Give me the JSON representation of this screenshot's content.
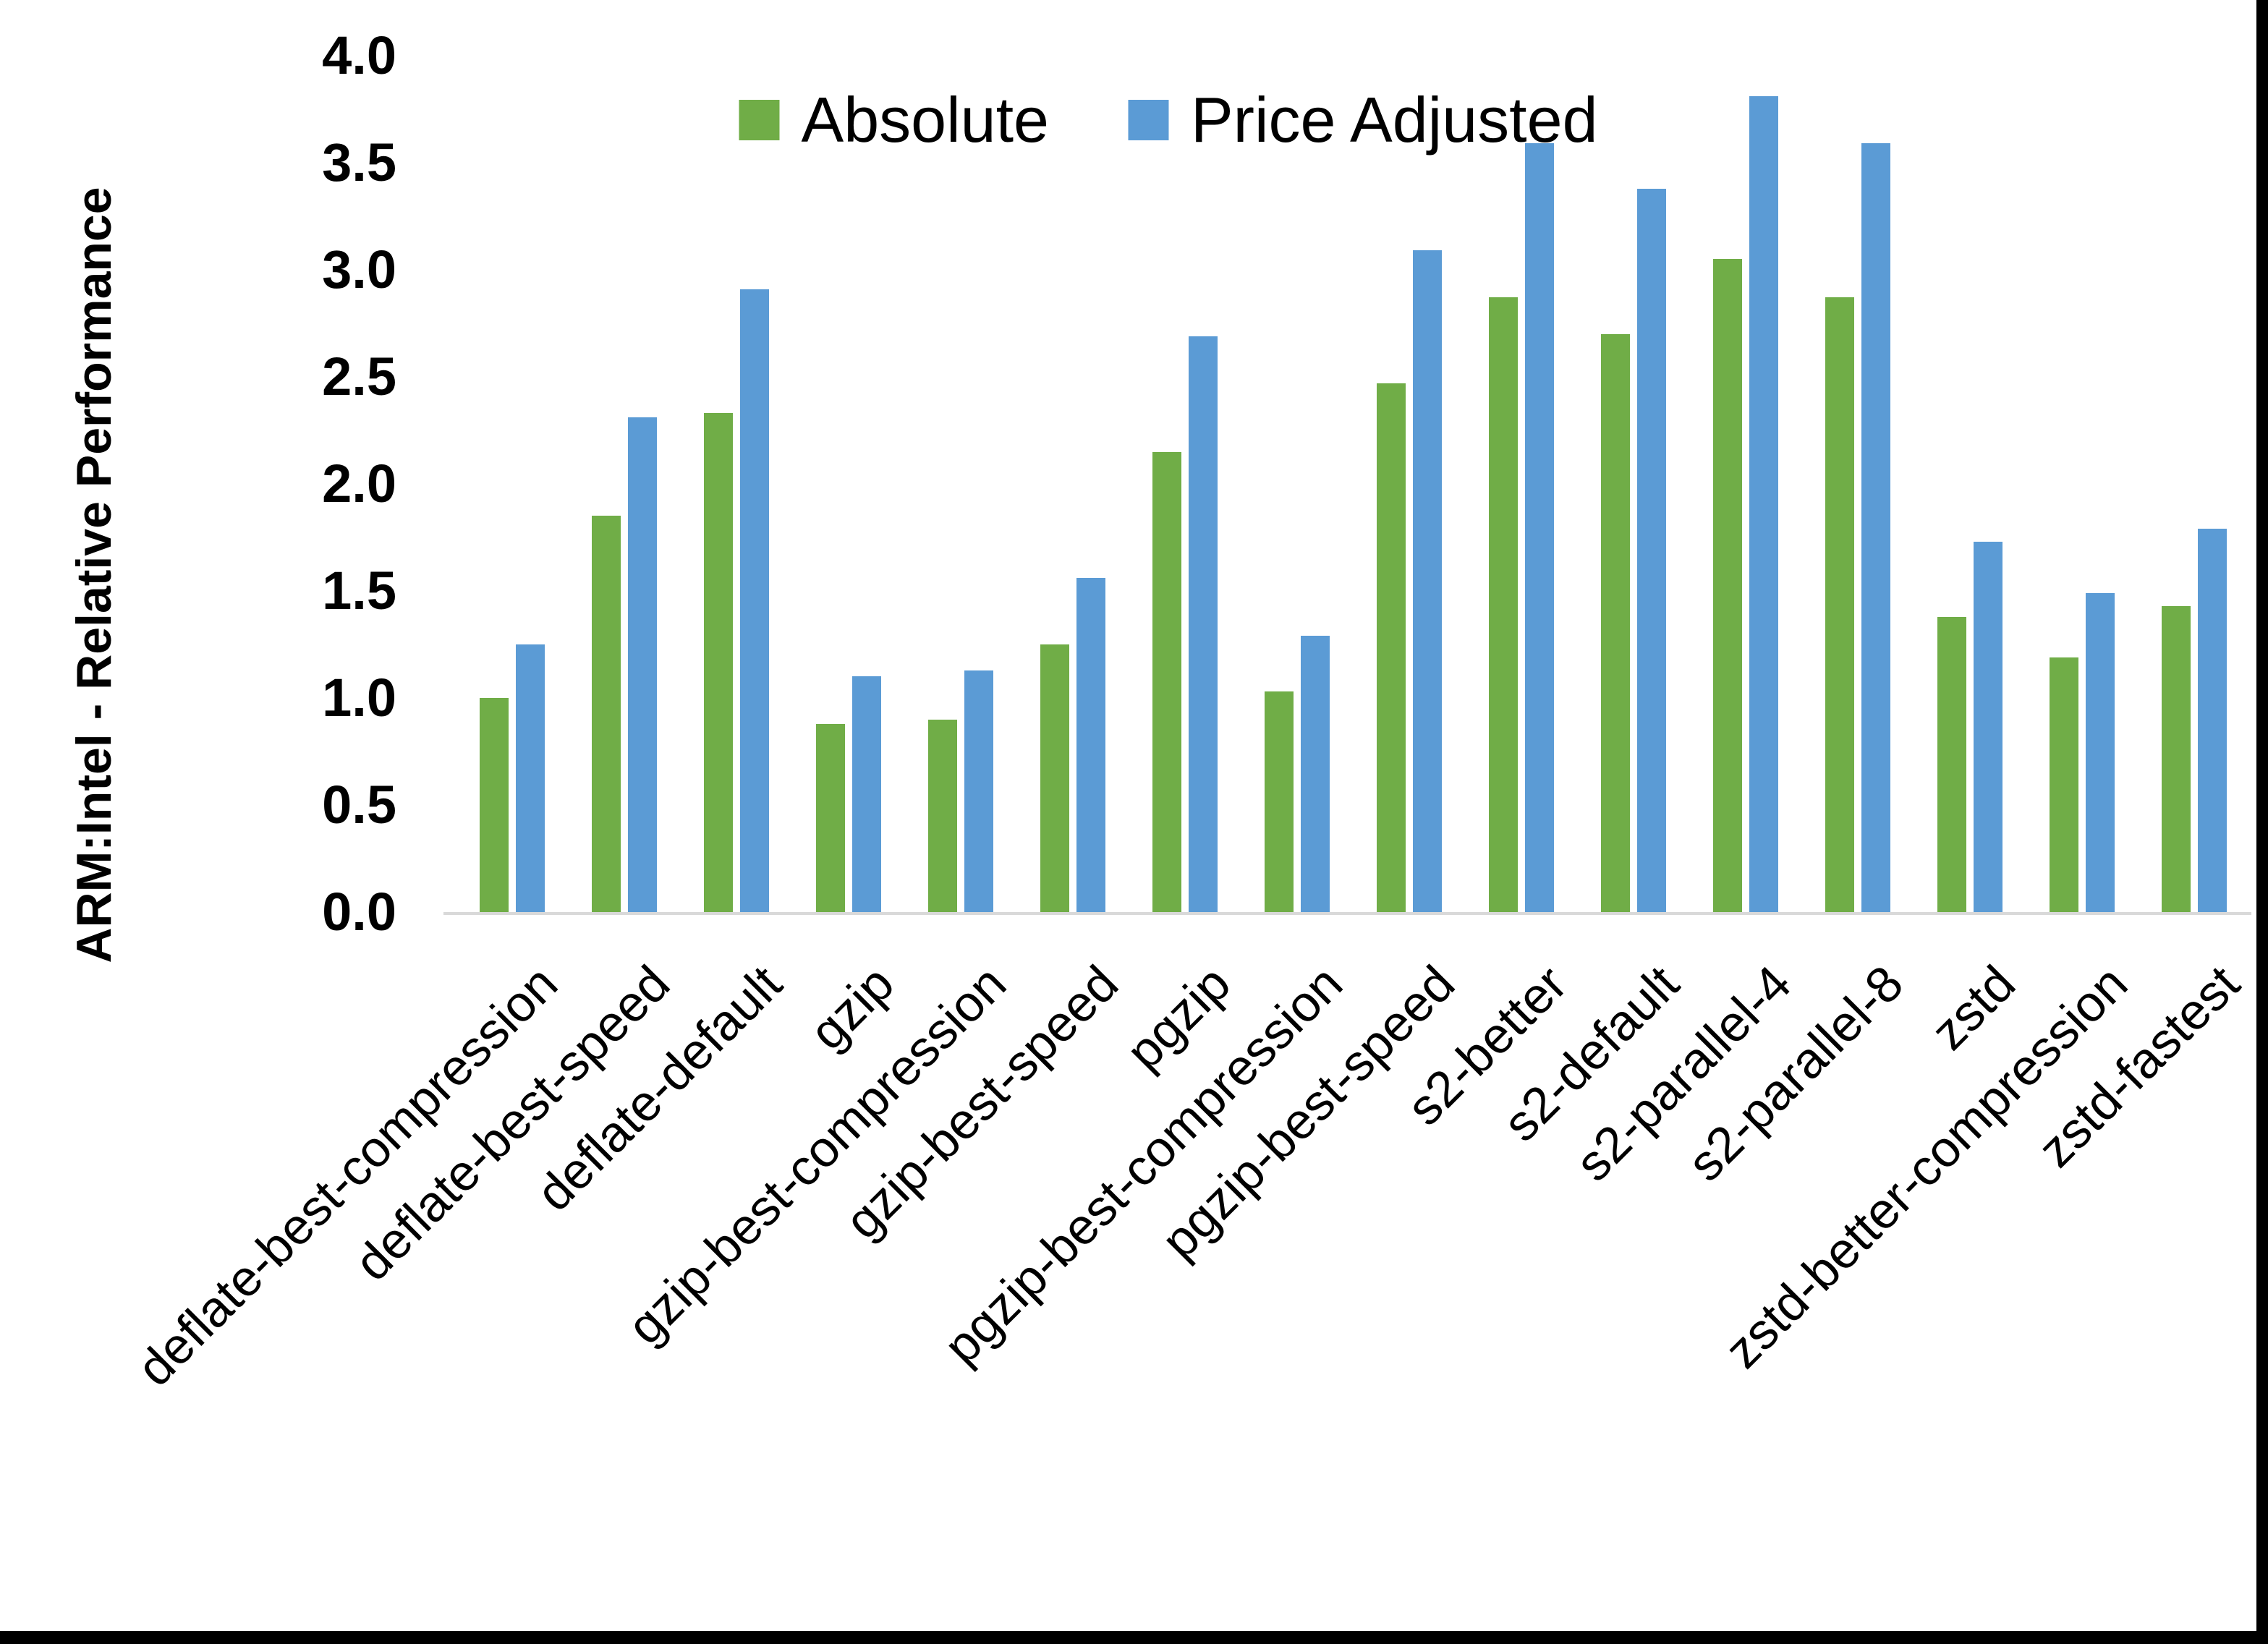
{
  "figure": {
    "background": "#FFFFFF",
    "screenshot_edge_color": "#000000"
  },
  "chart_data": {
    "type": "bar",
    "title": "",
    "xlabel": "",
    "ylabel": "ARM:Intel - Relative Performance",
    "ylim": [
      0.0,
      4.0
    ],
    "ytick_step": 0.5,
    "ytick_labels": [
      "4.0",
      "3.5",
      "3.0",
      "2.5",
      "2.0",
      "1.5",
      "1.0",
      "0.5",
      "0.0"
    ],
    "grid": false,
    "legend_position": "top-center",
    "axis_line_color": "#D9D9D9",
    "categories": [
      "deflate-best-compression",
      "deflate-best-speed",
      "deflate-default",
      "gzip",
      "gzip-best-compression",
      "gzip-best-speed",
      "pgzip",
      "pgzip-best-compression",
      "pgzip-best-speed",
      "s2-better",
      "s2-default",
      "s2-parallel-4",
      "s2-parallel-8",
      "zstd",
      "zstd-better-compression",
      "zstd-fastest"
    ],
    "series": [
      {
        "name": "Absolute",
        "color": "#70AD47",
        "values": [
          1.0,
          1.85,
          2.33,
          0.88,
          0.9,
          1.25,
          2.15,
          1.03,
          2.47,
          2.87,
          2.7,
          3.05,
          2.87,
          1.38,
          1.19,
          1.43
        ]
      },
      {
        "name": "Price Adjusted",
        "color": "#5B9BD5",
        "values": [
          1.25,
          2.31,
          2.91,
          1.1,
          1.13,
          1.56,
          2.69,
          1.29,
          3.09,
          3.59,
          3.38,
          3.81,
          3.59,
          1.73,
          1.49,
          1.79
        ]
      }
    ]
  }
}
